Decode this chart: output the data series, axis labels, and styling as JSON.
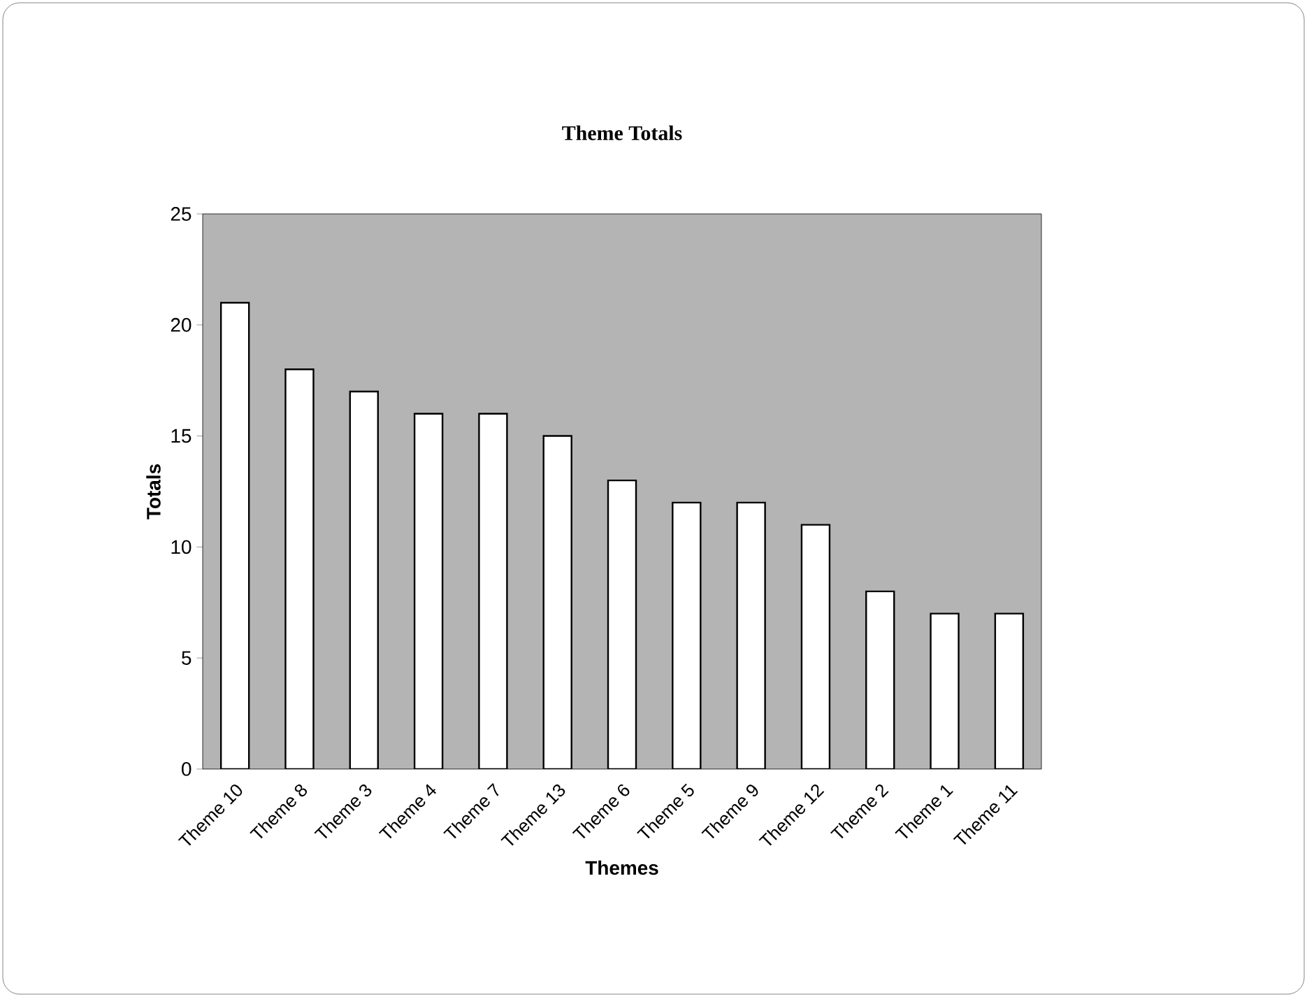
{
  "chart_data": {
    "type": "bar",
    "title": "Theme Totals",
    "xlabel": "Themes",
    "ylabel": "Totals",
    "categories": [
      "Theme 10",
      "Theme 8",
      "Theme 3",
      "Theme 4",
      "Theme 7",
      "Theme 13",
      "Theme 6",
      "Theme 5",
      "Theme 9",
      "Theme 12",
      "Theme 2",
      "Theme 1",
      "Theme 11"
    ],
    "values": [
      21,
      18,
      17,
      16,
      16,
      15,
      13,
      12,
      12,
      11,
      8,
      7,
      7
    ],
    "color": "#ffffff",
    "ylim": [
      0,
      25
    ],
    "yticks": [
      0,
      5,
      10,
      15,
      20,
      25
    ],
    "grid": false
  }
}
